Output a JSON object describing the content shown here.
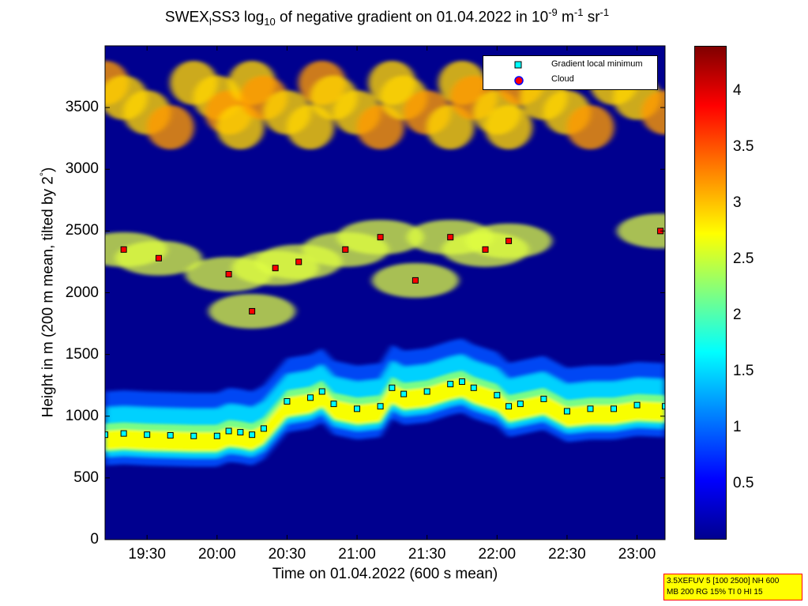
{
  "title": {
    "prefix": "SWEX",
    "sub1": "l",
    "mid1": "SS3 log",
    "sub2": "10",
    "mid2": " of negative gradient on 01.04.2022 in 10",
    "sup1": "-9",
    "mid3": " m",
    "sup2": "-1",
    "mid4": " sr",
    "sup3": "-1"
  },
  "chart_data": {
    "type": "heatmap",
    "xlabel": "Time on 01.04.2022 (600 s mean)",
    "ylabel_main": "Height in m (200 m mean, tilted by 2",
    "ylabel_sup": "°",
    "ylabel_end": ")",
    "xlim": [
      "19:12",
      "23:12"
    ],
    "ylim": [
      0,
      4000
    ],
    "x_ticks": [
      "19:30",
      "20:00",
      "20:30",
      "21:00",
      "21:30",
      "22:00",
      "22:30",
      "23:00"
    ],
    "y_ticks": [
      "0",
      "500",
      "1000",
      "1500",
      "2000",
      "2500",
      "3000",
      "3500"
    ],
    "colorbar": {
      "ticks": [
        "0.5",
        "1",
        "1.5",
        "2",
        "2.5",
        "3",
        "3.5",
        "4"
      ],
      "range": [
        0,
        4.4
      ],
      "colormap": "jet"
    },
    "series": [
      {
        "name": "Gradient local minimum",
        "marker": "square",
        "color": "#00ffff",
        "x": [
          "19:12",
          "19:20",
          "19:30",
          "19:40",
          "19:50",
          "20:00",
          "20:05",
          "20:10",
          "20:15",
          "20:20",
          "20:30",
          "20:40",
          "20:45",
          "20:50",
          "21:00",
          "21:10",
          "21:15",
          "21:20",
          "21:30",
          "21:40",
          "21:45",
          "21:50",
          "22:00",
          "22:05",
          "22:10",
          "22:20",
          "22:30",
          "22:40",
          "22:50",
          "23:00",
          "23:12"
        ],
        "y": [
          850,
          860,
          850,
          845,
          840,
          840,
          880,
          870,
          850,
          900,
          1120,
          1150,
          1200,
          1100,
          1060,
          1080,
          1230,
          1180,
          1200,
          1260,
          1280,
          1230,
          1170,
          1080,
          1100,
          1140,
          1040,
          1060,
          1060,
          1090,
          1080
        ]
      },
      {
        "name": "Cloud",
        "marker": "circle",
        "color": "#ff0000",
        "x": [
          "19:20",
          "19:35",
          "20:05",
          "20:15",
          "20:25",
          "20:35",
          "20:55",
          "21:10",
          "21:25",
          "21:40",
          "21:55",
          "22:05",
          "23:10"
        ],
        "y": [
          2350,
          2280,
          2150,
          1850,
          2200,
          2250,
          2350,
          2450,
          2100,
          2450,
          2350,
          2420,
          2500
        ]
      }
    ],
    "legend": {
      "position": "top-right"
    }
  },
  "info_box": {
    "line1": "3.5XEFUV 5 [100 2500] NH 600",
    "line2": "MB 200 RG 15% TI 0 HI 15"
  },
  "colors": {
    "plot_background": "#00008f",
    "minimum_marker_fill": "#00ffff",
    "cloud_marker_fill": "#ff0000",
    "info_box_bg": "#ffff00",
    "info_box_border": "#ff0000"
  }
}
